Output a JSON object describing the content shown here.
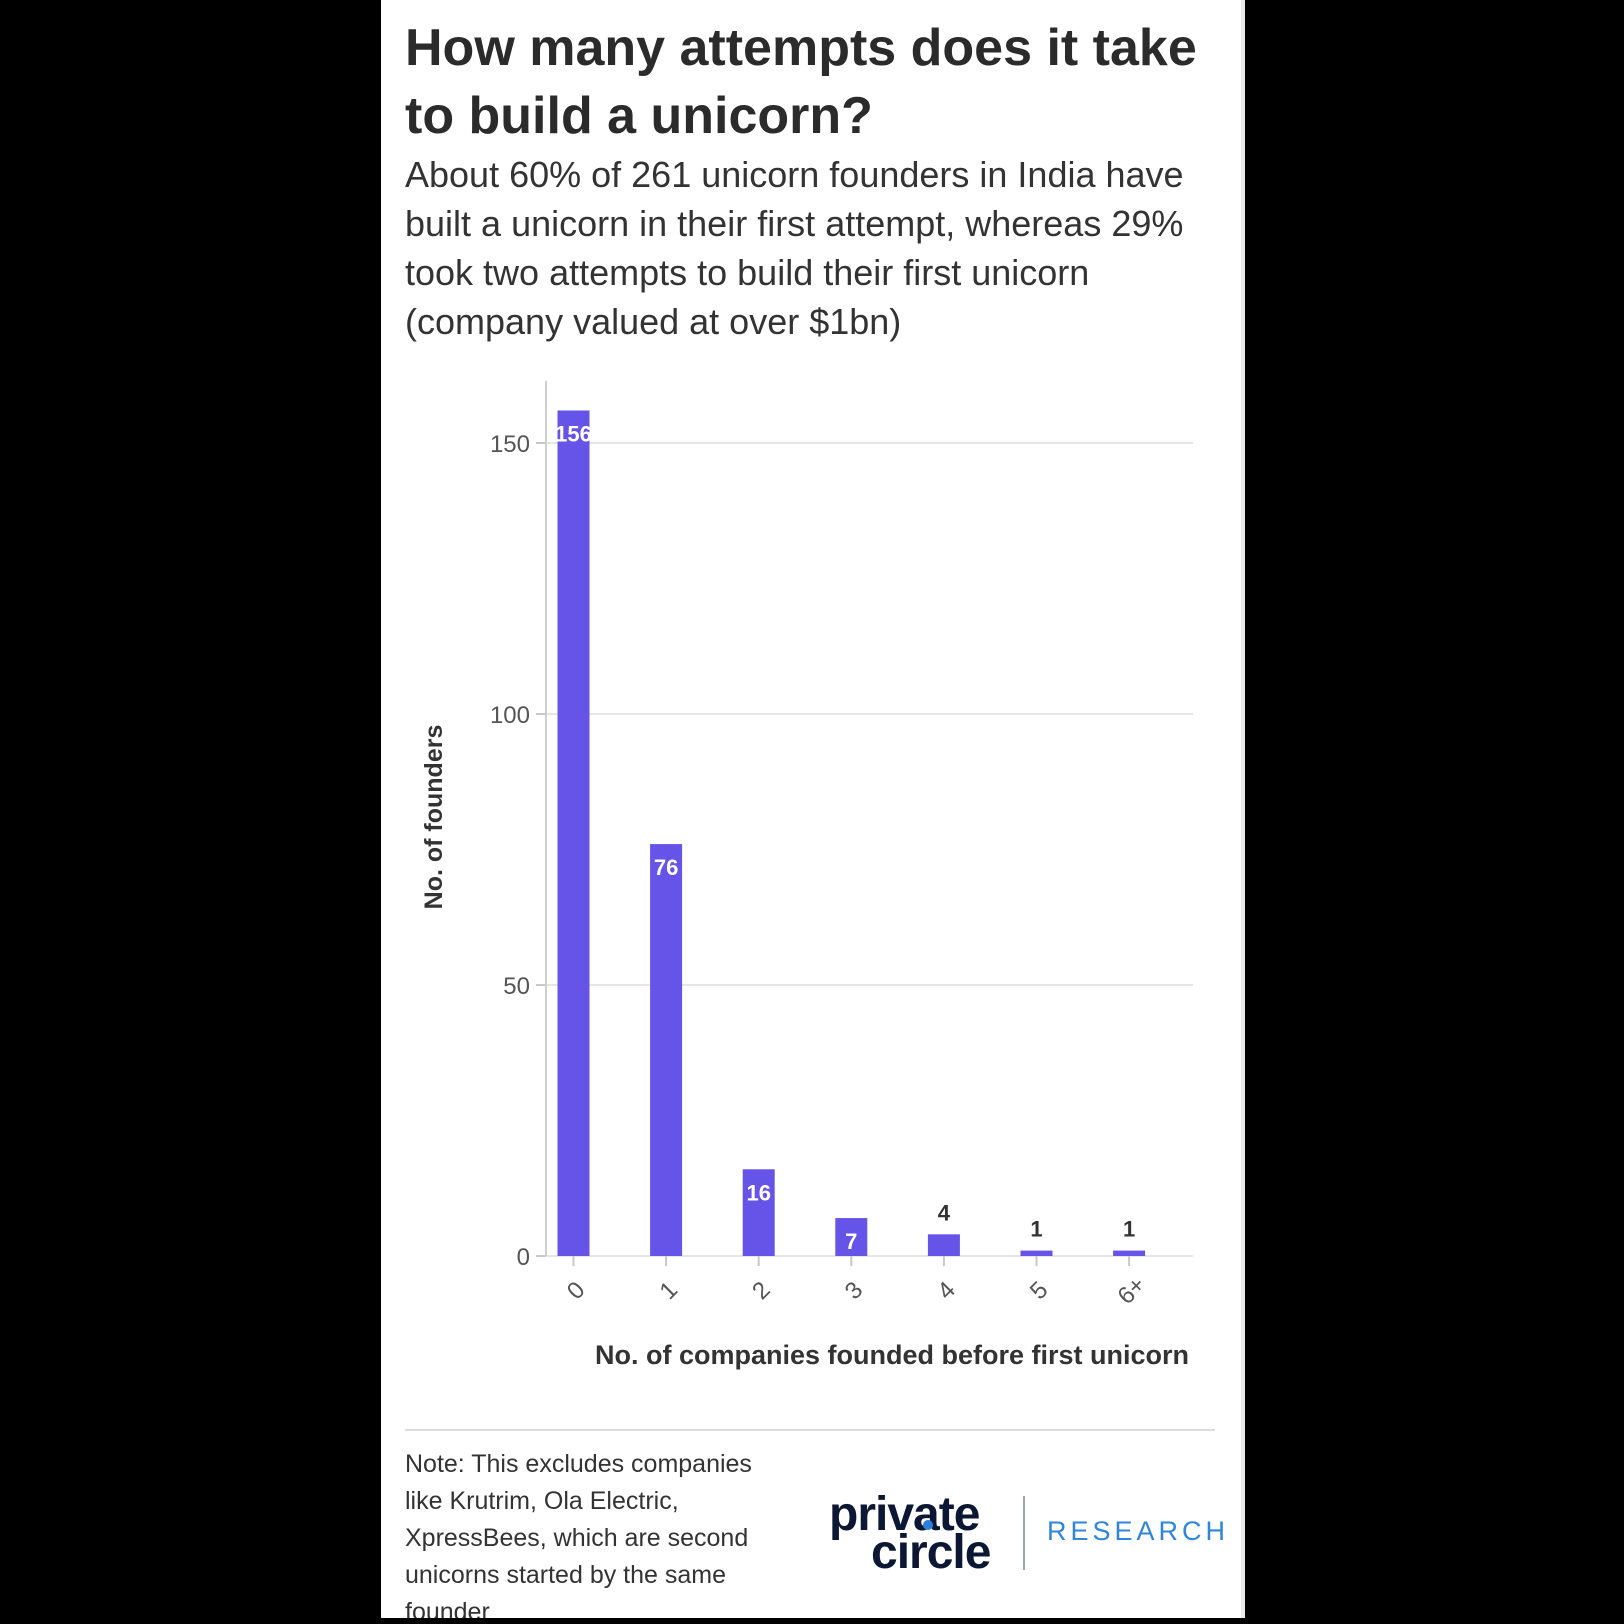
{
  "title": "How many attempts does it take to build a unicorn?",
  "subtitle": "About 60% of 261 unicorn founders in India have built a unicorn in their first attempt, whereas 29% took two attempts to build their first unicorn (company valued at over $1bn)",
  "note": "Note: This excludes companies like Krutrim, Ola Electric, XpressBees, which are second unicorns started by the same founder",
  "logo": {
    "line1": "private",
    "line2": "circle",
    "tag": "RESEARCH"
  },
  "colors": {
    "bar": "#6653e8",
    "grid": "#e6e6e6",
    "axis_text": "#555555",
    "label_text": "#333333"
  },
  "chart_data": {
    "type": "bar",
    "categories": [
      "0",
      "1",
      "2",
      "3",
      "4",
      "5",
      "6+"
    ],
    "values": [
      156,
      76,
      16,
      7,
      4,
      1,
      1
    ],
    "xlabel": "No. of companies founded before first unicorn",
    "ylabel": "No. of founders",
    "ylim": [
      0,
      160
    ],
    "yticks": [
      0,
      50,
      100,
      150
    ],
    "grid": true,
    "data_labels": true
  }
}
